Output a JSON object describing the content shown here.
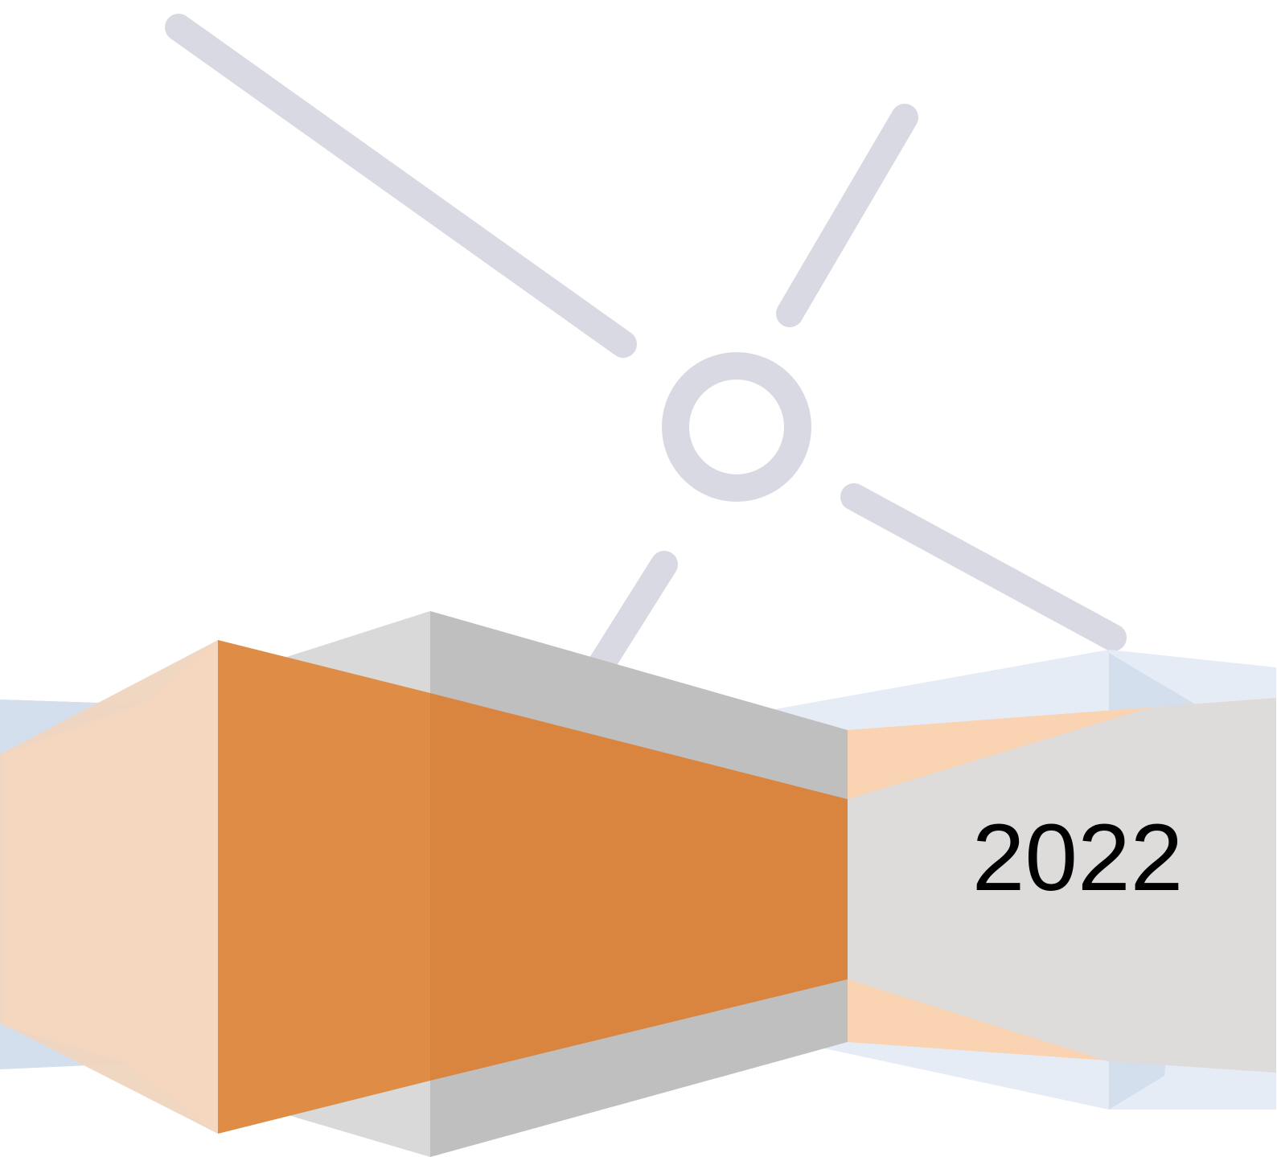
{
  "cover": {
    "year": "2022"
  },
  "colors": {
    "background": "#ffffff",
    "sun_lines": "#d9d9e4",
    "accent_orange": "#d9843f",
    "orange_light": "#f9d3b2",
    "peach": "#efd5c0",
    "gray_light": "#d9d9d9",
    "gray_mid": "#bfbfbf",
    "gray_panel": "#dedbdb",
    "blue_light": "#e6ecf5",
    "blue_mid": "#d4dfee"
  },
  "icons": {
    "sun_icon": "sun-rays-with-circle"
  }
}
